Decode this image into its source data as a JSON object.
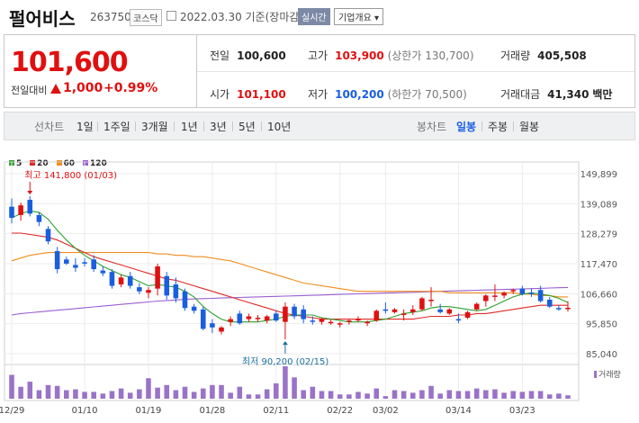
{
  "header": {
    "name": "펄어비스",
    "code": "263750",
    "market": "코스닥",
    "date": "2022.03.30 기준(장마감)",
    "live_label": "실시간",
    "overview_label": "기업개요 ▾"
  },
  "quote": {
    "price": "101,600",
    "prev_label": "전일대비",
    "change": "1,000",
    "change_pct": "+0.99%",
    "prev_close_label": "전일",
    "prev_close": "100,600",
    "high_label": "고가",
    "high": "103,900",
    "upper_limit": "(상한가 130,700)",
    "volume_label": "거래량",
    "volume": "405,508",
    "open_label": "시가",
    "open": "101,100",
    "low_label": "저가",
    "low": "100,200",
    "lower_limit": "(하한가 70,500)",
    "amount_label": "거래대금",
    "amount": "41,340",
    "amount_unit": "백만"
  },
  "tabs": {
    "line_label": "선차트",
    "line_options": [
      "1일",
      "1주일",
      "3개월",
      "1년",
      "3년",
      "5년",
      "10년"
    ],
    "candle_label": "봉차트",
    "candle_options": [
      "일봉",
      "주봉",
      "월봉"
    ],
    "selected": "일봉"
  },
  "colors": {
    "up": "#e01010",
    "down": "#1a5ee0",
    "ma5": "#2ea02e",
    "ma20": "#e02828",
    "ma60": "#f08c1e",
    "ma120": "#9a5fd0",
    "volume": "#9a73c8"
  },
  "chart_data": {
    "type": "candlestick",
    "legend": [
      "5",
      "20",
      "60",
      "120"
    ],
    "y_ticks": [
      "149,899",
      "139,089",
      "128,279",
      "117,470",
      "106,660",
      "95,850",
      "85,040"
    ],
    "ylim": [
      85040,
      149899
    ],
    "x_ticks": [
      "12/29",
      "01/10",
      "01/19",
      "01/28",
      "02/11",
      "02/22",
      "03/02",
      "03/14",
      "03/23"
    ],
    "x_tick_index": [
      0,
      8,
      15,
      22,
      29,
      36,
      41,
      49,
      56
    ],
    "annotations": {
      "high": "최고 141,800 (01/03)",
      "low": "최저 90,200 (02/15)"
    },
    "volume_label": "거래량",
    "candles": [
      [
        138000,
        141000,
        132000,
        134000
      ],
      [
        135000,
        139500,
        133000,
        138500
      ],
      [
        140500,
        141800,
        134500,
        135500
      ],
      [
        135000,
        136000,
        131000,
        132500
      ],
      [
        130000,
        131000,
        124500,
        125500
      ],
      [
        122000,
        123500,
        114000,
        115500
      ],
      [
        119000,
        120000,
        117000,
        117500
      ],
      [
        117000,
        119500,
        114500,
        116000
      ],
      [
        118000,
        119500,
        116500,
        117500
      ],
      [
        119000,
        120500,
        114500,
        115500
      ],
      [
        115000,
        116500,
        113000,
        114000
      ],
      [
        114500,
        115500,
        108500,
        109500
      ],
      [
        110000,
        113500,
        109000,
        112500
      ],
      [
        113000,
        114500,
        108500,
        109500
      ],
      [
        109000,
        110500,
        106500,
        107500
      ],
      [
        107000,
        109000,
        105000,
        108000
      ],
      [
        108500,
        117500,
        106000,
        116500
      ],
      [
        113000,
        114500,
        104500,
        106000
      ],
      [
        110000,
        112500,
        103500,
        105000
      ],
      [
        107500,
        108500,
        100500,
        101500
      ],
      [
        102000,
        103000,
        99500,
        100500
      ],
      [
        101000,
        102000,
        93500,
        94000
      ],
      [
        96000,
        97500,
        92500,
        94500
      ],
      [
        93000,
        95000,
        92000,
        94500
      ],
      [
        96500,
        98500,
        95000,
        97500
      ],
      [
        99500,
        100500,
        95500,
        96000
      ],
      [
        97500,
        99500,
        96500,
        98500
      ],
      [
        97500,
        99000,
        96500,
        98000
      ],
      [
        97000,
        99000,
        96000,
        98500
      ],
      [
        99500,
        100500,
        96500,
        97000
      ],
      [
        96500,
        103500,
        90200,
        102000
      ],
      [
        102000,
        103000,
        97500,
        98500
      ],
      [
        101000,
        102500,
        96000,
        97500
      ],
      [
        97000,
        98500,
        95500,
        96500
      ],
      [
        96500,
        98000,
        95500,
        97500
      ],
      [
        96000,
        97500,
        95500,
        96500
      ],
      [
        95500,
        96500,
        94500,
        96000
      ],
      [
        96500,
        97500,
        95500,
        97000
      ],
      [
        97000,
        98500,
        96500,
        97500
      ],
      [
        96000,
        97000,
        95000,
        96500
      ],
      [
        97000,
        101000,
        96500,
        100500
      ],
      [
        101000,
        103500,
        99500,
        100500
      ],
      [
        100000,
        101500,
        99500,
        101000
      ],
      [
        99000,
        101000,
        97000,
        99500
      ],
      [
        100000,
        102500,
        99000,
        101000
      ],
      [
        101000,
        105500,
        100500,
        105000
      ],
      [
        104000,
        109000,
        102000,
        104500
      ],
      [
        101000,
        103000,
        99500,
        100000
      ],
      [
        99500,
        101500,
        99000,
        101000
      ],
      [
        97500,
        99500,
        96000,
        97000
      ],
      [
        98000,
        100500,
        97500,
        100000
      ],
      [
        101000,
        103500,
        100500,
        103000
      ],
      [
        104000,
        106500,
        102000,
        106000
      ],
      [
        105500,
        110000,
        104000,
        106000
      ],
      [
        106000,
        107500,
        105000,
        107000
      ],
      [
        107500,
        108500,
        106500,
        108000
      ],
      [
        108500,
        109500,
        106000,
        106500
      ],
      [
        107000,
        108500,
        105500,
        106500
      ],
      [
        108000,
        109500,
        103500,
        104000
      ],
      [
        104500,
        105500,
        101500,
        102000
      ],
      [
        101500,
        102500,
        100500,
        101000
      ],
      [
        101100,
        103900,
        100200,
        101600
      ]
    ],
    "volumes": [
      28,
      14,
      20,
      10,
      16,
      15,
      10,
      11,
      8,
      8,
      6,
      9,
      12,
      7,
      11,
      24,
      13,
      16,
      10,
      14,
      8,
      12,
      16,
      16,
      7,
      14,
      5,
      5,
      11,
      18,
      38,
      25,
      10,
      14,
      9,
      9,
      5,
      5,
      8,
      6,
      12,
      3,
      10,
      9,
      7,
      10,
      15,
      6,
      10,
      9,
      9,
      12,
      10,
      11,
      7,
      9,
      8,
      9,
      9,
      5,
      6,
      4
    ],
    "ma5": [
      134000,
      135500,
      136500,
      136000,
      133500,
      129500,
      126000,
      123000,
      120500,
      118500,
      116500,
      115000,
      113500,
      112500,
      111000,
      109500,
      110000,
      109500,
      109000,
      107500,
      105500,
      102000,
      99500,
      97500,
      96500,
      96500,
      96500,
      96500,
      97000,
      97500,
      98500,
      99000,
      99000,
      99000,
      98000,
      97500,
      97000,
      96500,
      96500,
      96500,
      97000,
      97500,
      98500,
      99500,
      100000,
      100500,
      101500,
      102000,
      102000,
      101500,
      101000,
      100500,
      101000,
      102500,
      104000,
      105500,
      106500,
      107000,
      106500,
      106000,
      105000,
      103500
    ],
    "ma20": [
      128500,
      128500,
      128000,
      127500,
      127000,
      126000,
      124500,
      123000,
      121500,
      120000,
      119000,
      118000,
      117000,
      116000,
      115000,
      114000,
      113000,
      112000,
      111500,
      110500,
      109500,
      108500,
      107500,
      106500,
      105500,
      104500,
      103500,
      102500,
      101500,
      100500,
      99500,
      99000,
      98500,
      98000,
      97500,
      97500,
      97500,
      97500,
      97500,
      97500,
      97500,
      97500,
      97500,
      97500,
      97500,
      98000,
      98500,
      98500,
      98500,
      99000,
      99000,
      99500,
      99500,
      100000,
      100500,
      101000,
      101500,
      102000,
      102500,
      102500,
      102500,
      102500
    ],
    "ma60": [
      118500,
      119500,
      120500,
      121000,
      121500,
      121500,
      121500,
      121500,
      121500,
      121500,
      121500,
      121500,
      121500,
      121500,
      121500,
      121500,
      121000,
      121000,
      120500,
      120500,
      120000,
      120000,
      119500,
      119000,
      118500,
      117500,
      116500,
      115500,
      114500,
      113500,
      112500,
      111500,
      110500,
      110000,
      109500,
      109000,
      108500,
      108000,
      107500,
      107500,
      107500,
      107500,
      107500,
      107500,
      107500,
      107500,
      107500,
      107500,
      107000,
      107000,
      107000,
      107000,
      107000,
      107000,
      107000,
      107000,
      106500,
      106500,
      106000,
      106000,
      105500,
      105500
    ],
    "ma120": [
      99000,
      99500,
      99800,
      100100,
      100400,
      100700,
      101000,
      101300,
      101600,
      101900,
      102200,
      102500,
      102800,
      103100,
      103400,
      103700,
      104000,
      104200,
      104400,
      104600,
      104800,
      104900,
      105000,
      105100,
      105200,
      105300,
      105400,
      105500,
      105600,
      105700,
      105800,
      105900,
      106000,
      106100,
      106200,
      106300,
      106400,
      106500,
      106600,
      106700,
      106800,
      106900,
      107000,
      107100,
      107200,
      107300,
      107400,
      107500,
      107600,
      107700,
      107800,
      107900,
      108000,
      108100,
      108200,
      108300,
      108400,
      108500,
      108600,
      108700,
      108800,
      108900
    ]
  }
}
